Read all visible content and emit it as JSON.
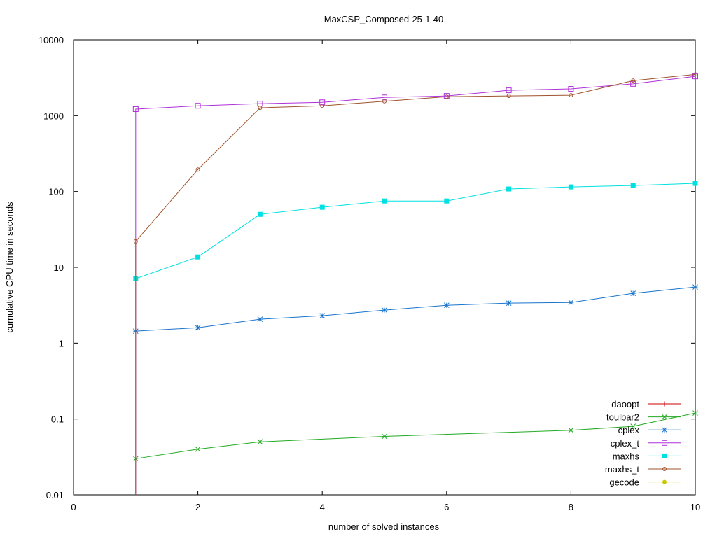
{
  "chart_data": {
    "type": "line",
    "title": "MaxCSP_Composed-25-1-40",
    "xlabel": "number of solved instances",
    "ylabel": "cumulative CPU time in seconds",
    "xlim": [
      0,
      10
    ],
    "ylim": [
      0.01,
      10000
    ],
    "yscale": "log",
    "xticks": [
      0,
      2,
      4,
      6,
      8,
      10
    ],
    "xtick_labels": [
      "0",
      "2",
      "4",
      "6",
      "8",
      "10"
    ],
    "yticks": [
      0.01,
      0.1,
      1,
      10,
      100,
      1000,
      10000
    ],
    "ytick_labels": [
      "0.01",
      "0.1",
      "1",
      "10",
      "100",
      "1000",
      "10000"
    ],
    "legend_position": "bottom-right",
    "series": [
      {
        "name": "daoopt",
        "color": "#cc0000",
        "marker": "plus",
        "x": [],
        "y": []
      },
      {
        "name": "toulbar2",
        "color": "#22aa22",
        "marker": "x",
        "x": [
          1,
          2,
          3,
          5,
          8,
          9,
          10
        ],
        "y": [
          0.03,
          0.04,
          0.05,
          0.059,
          0.071,
          0.08,
          0.12
        ]
      },
      {
        "name": "cplex",
        "color": "#1874cd",
        "marker": "star",
        "x": [
          1,
          2,
          3,
          4,
          5,
          6,
          7,
          8,
          9,
          10
        ],
        "y": [
          1.44,
          1.6,
          2.07,
          2.3,
          2.73,
          3.16,
          3.37,
          3.44,
          4.54,
          5.5
        ]
      },
      {
        "name": "cplex_t",
        "color": "#b030d8",
        "marker": "square",
        "x": [
          1,
          2,
          3,
          4,
          5,
          6,
          7,
          8,
          9,
          10
        ],
        "y": [
          1220,
          1350,
          1440,
          1500,
          1740,
          1820,
          2160,
          2260,
          2630,
          3300
        ],
        "drop_to_min": true
      },
      {
        "name": "maxhs",
        "color": "#00e0e0",
        "marker": "filled-square",
        "x": [
          1,
          2,
          3,
          4,
          5,
          6,
          7,
          8,
          9,
          10
        ],
        "y": [
          7.1,
          13.7,
          50,
          62,
          75,
          75,
          108,
          115,
          120,
          128
        ]
      },
      {
        "name": "maxhs_t",
        "color": "#a0522d",
        "marker": "circle",
        "x": [
          1,
          2,
          3,
          4,
          5,
          6,
          7,
          8,
          9,
          10
        ],
        "y": [
          22,
          195,
          1270,
          1350,
          1550,
          1780,
          1820,
          1860,
          2900,
          3500
        ],
        "drop_to_min": true
      },
      {
        "name": "gecode",
        "color": "#c8c800",
        "marker": "filled-circle",
        "x": [],
        "y": []
      }
    ]
  }
}
